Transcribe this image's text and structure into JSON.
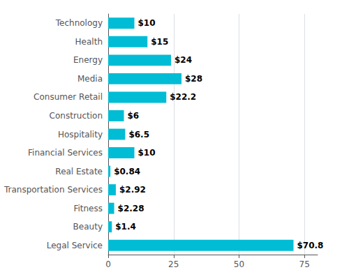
{
  "chart_data": {
    "type": "bar",
    "orientation": "horizontal",
    "categories": [
      "Technology",
      "Health",
      "Energy",
      "Media",
      "Consumer Retail",
      "Construction",
      "Hospitality",
      "Financial Services",
      "Real Estate",
      "Transportation Services",
      "Fitness",
      "Beauty",
      "Legal Service"
    ],
    "values": [
      10,
      15,
      24,
      28,
      22.2,
      6,
      6.5,
      10,
      0.84,
      2.92,
      2.28,
      1.4,
      70.8
    ],
    "value_labels": [
      "$10",
      "$15",
      "$24",
      "$28",
      "$22.2",
      "$6",
      "$6.5",
      "$10",
      "$0.84",
      "$2.92",
      "$2.28",
      "$1.4",
      "$70.8"
    ],
    "color": "#00BCD4",
    "xlim": [
      0,
      80
    ],
    "xticks": [
      0,
      25,
      50,
      75
    ],
    "grid": true,
    "data_labels": true
  }
}
